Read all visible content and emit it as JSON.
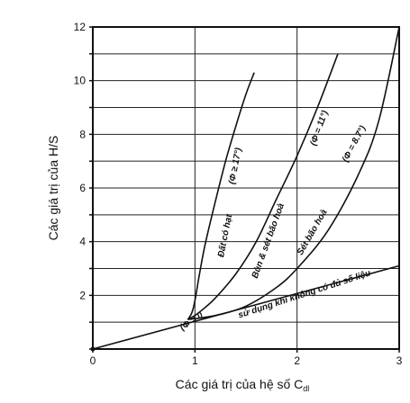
{
  "chart_data": {
    "type": "line",
    "xlabel": "Các giá trị của hệ số C",
    "xlabel_sub": "dl",
    "ylabel": "Các giá trị của H/S",
    "xlim": [
      0,
      3
    ],
    "ylim": [
      0,
      12
    ],
    "x_ticks": [
      "0",
      "1",
      "2",
      "3"
    ],
    "y_ticks": [
      "2",
      "4",
      "6",
      "8",
      "10",
      "12"
    ],
    "grid": true,
    "series": [
      {
        "name": "Đất có hạt (Φ ≥ 17°)",
        "x": [
          0.93,
          0.97,
          1.0,
          1.04,
          1.1,
          1.2,
          1.3,
          1.4,
          1.5,
          1.58
        ],
        "y": [
          1.1,
          1.35,
          1.8,
          2.7,
          3.9,
          5.5,
          7.0,
          8.3,
          9.5,
          10.3
        ]
      },
      {
        "name": "Bùn & sét bão hoà (Φ = 11°)",
        "x": [
          0.93,
          1.0,
          1.1,
          1.2,
          1.4,
          1.6,
          1.8,
          2.0,
          2.2,
          2.4
        ],
        "y": [
          1.1,
          1.25,
          1.55,
          1.9,
          2.8,
          4.0,
          5.6,
          7.2,
          9.0,
          11.0
        ]
      },
      {
        "name": "Sét bão hoà (Φ = 8.7°)",
        "x": [
          0.93,
          1.2,
          1.5,
          1.8,
          2.0,
          2.3,
          2.6,
          2.8,
          3.0
        ],
        "y": [
          1.1,
          1.25,
          1.6,
          2.3,
          3.0,
          4.4,
          6.5,
          8.5,
          12.0
        ]
      },
      {
        "name": "(Φ = 0 sử dụng khi không có đủ số liệu",
        "x": [
          0,
          3
        ],
        "y": [
          0,
          3.1
        ]
      }
    ],
    "annotations": [
      "Đất có hạt",
      "(Φ ≥ 17°)",
      "Bùn & sét bão hoà",
      "(Φ = 11°)",
      "Sét bão hoà",
      "(Φ = 8.7°)",
      "(Φ = 0",
      "sử dụng khi không có đủ số liệu"
    ]
  }
}
